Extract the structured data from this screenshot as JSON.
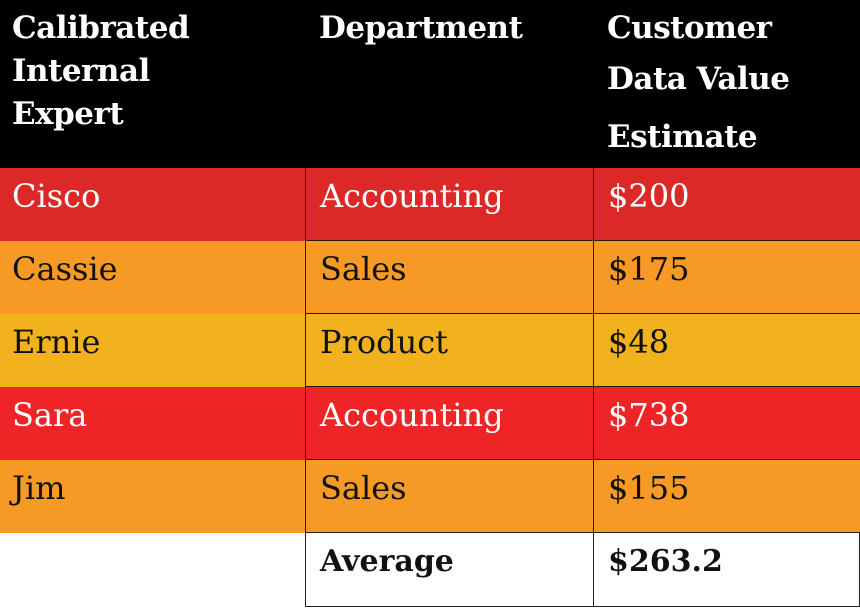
{
  "columns": {
    "expert_line1": "Calibrated",
    "expert_line2": "Internal",
    "expert_line3": "Expert",
    "department": "Department",
    "estimate_line1": "Customer",
    "estimate_line2": "Data Value",
    "estimate_line3": "Estimate"
  },
  "rows": [
    {
      "expert": "Cisco",
      "department": "Accounting",
      "estimate": "$200"
    },
    {
      "expert": "Cassie",
      "department": "Sales",
      "estimate": "$175"
    },
    {
      "expert": "Ernie",
      "department": "Product",
      "estimate": "$48"
    },
    {
      "expert": "Sara",
      "department": "Accounting",
      "estimate": "$738"
    },
    {
      "expert": "Jim",
      "department": "Sales",
      "estimate": "$155"
    }
  ],
  "summary": {
    "label": "Average",
    "value": "$263.2"
  },
  "colors": {
    "header_bg": "#000000",
    "row_red": "#dc2928",
    "row_orange": "#f79a25",
    "row_yellow": "#f2b21e",
    "row_bright_red": "#ee2427"
  }
}
